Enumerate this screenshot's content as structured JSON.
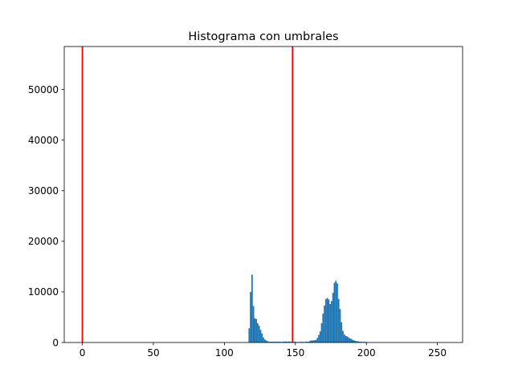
{
  "chart_data": {
    "type": "bar",
    "title": "Histograma con umbrales",
    "xlabel": "",
    "ylabel": "",
    "xlim": [
      -12.75,
      267.75
    ],
    "ylim": [
      0,
      58500
    ],
    "xticks": [
      0,
      50,
      100,
      150,
      200,
      250
    ],
    "yticks": [
      0,
      10000,
      20000,
      30000,
      40000,
      50000
    ],
    "grid": false,
    "bar_color": "#1f77b4",
    "bins": [
      [
        117,
        2800
      ],
      [
        118,
        10000
      ],
      [
        119,
        13400
      ],
      [
        120,
        7200
      ],
      [
        121,
        4800
      ],
      [
        122,
        4600
      ],
      [
        123,
        3800
      ],
      [
        124,
        3300
      ],
      [
        125,
        2500
      ],
      [
        126,
        1800
      ],
      [
        127,
        1000
      ],
      [
        128,
        600
      ],
      [
        129,
        400
      ],
      [
        130,
        250
      ],
      [
        131,
        150
      ],
      [
        132,
        150
      ],
      [
        133,
        150
      ],
      [
        134,
        150
      ],
      [
        135,
        150
      ],
      [
        136,
        150
      ],
      [
        137,
        150
      ],
      [
        138,
        150
      ],
      [
        139,
        150
      ],
      [
        140,
        100
      ],
      [
        141,
        200
      ],
      [
        142,
        150
      ],
      [
        143,
        200
      ],
      [
        144,
        150
      ],
      [
        145,
        200
      ],
      [
        146,
        150
      ],
      [
        147,
        150
      ],
      [
        148,
        150
      ],
      [
        149,
        150
      ],
      [
        150,
        100
      ],
      [
        151,
        100
      ],
      [
        152,
        100
      ],
      [
        153,
        100
      ],
      [
        154,
        150
      ],
      [
        155,
        100
      ],
      [
        156,
        100
      ],
      [
        157,
        150
      ],
      [
        158,
        150
      ],
      [
        159,
        150
      ],
      [
        160,
        350
      ],
      [
        161,
        400
      ],
      [
        162,
        400
      ],
      [
        163,
        450
      ],
      [
        164,
        500
      ],
      [
        165,
        900
      ],
      [
        166,
        1500
      ],
      [
        167,
        2200
      ],
      [
        168,
        3800
      ],
      [
        169,
        5700
      ],
      [
        170,
        7300
      ],
      [
        171,
        8600
      ],
      [
        172,
        8800
      ],
      [
        173,
        8500
      ],
      [
        174,
        7600
      ],
      [
        175,
        8200
      ],
      [
        176,
        9800
      ],
      [
        177,
        11800
      ],
      [
        178,
        12200
      ],
      [
        179,
        11700
      ],
      [
        180,
        8600
      ],
      [
        181,
        6600
      ],
      [
        182,
        4000
      ],
      [
        183,
        2300
      ],
      [
        184,
        1600
      ],
      [
        185,
        1300
      ],
      [
        186,
        1200
      ],
      [
        187,
        1000
      ],
      [
        188,
        800
      ],
      [
        189,
        700
      ],
      [
        190,
        500
      ],
      [
        191,
        400
      ],
      [
        192,
        300
      ],
      [
        193,
        250
      ],
      [
        194,
        200
      ],
      [
        195,
        150
      ],
      [
        196,
        150
      ],
      [
        197,
        100
      ],
      [
        198,
        150
      ],
      [
        199,
        100
      ],
      [
        200,
        80
      ]
    ],
    "thresholds": {
      "color": "#ff0000",
      "values": [
        0,
        148
      ]
    }
  }
}
